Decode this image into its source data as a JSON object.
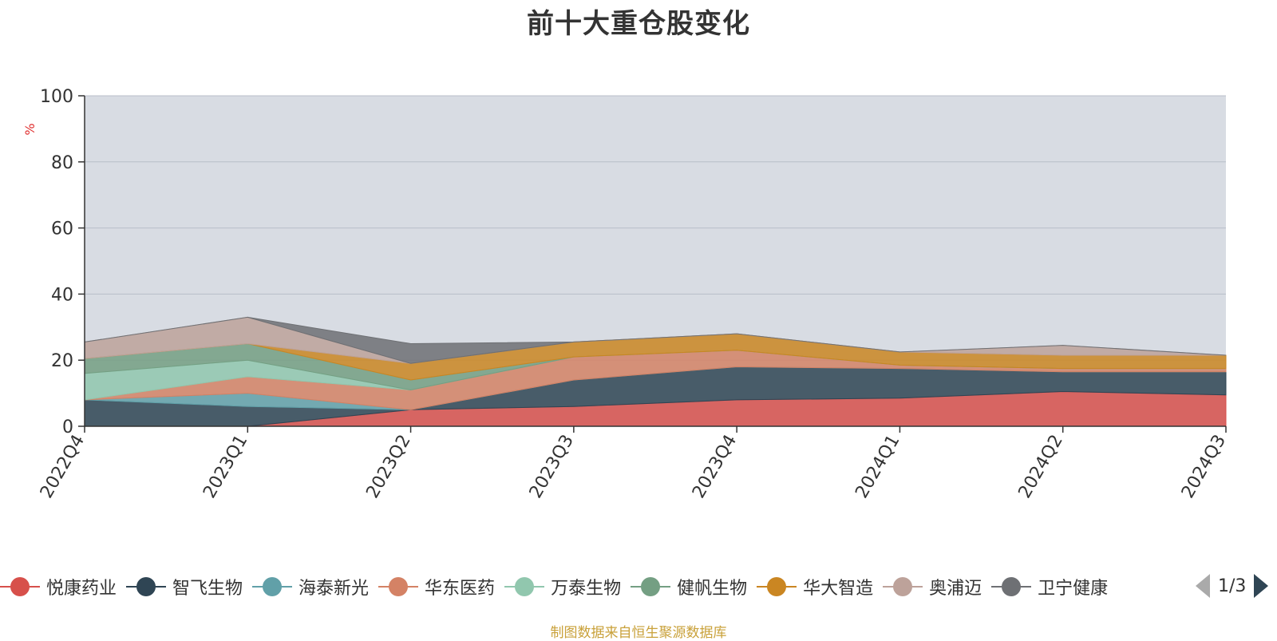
{
  "chart_data": {
    "type": "area",
    "title": "前十大重仓股变化",
    "ylabel": "%",
    "ylim": [
      0,
      100
    ],
    "yticks": [
      0,
      20,
      40,
      60,
      80,
      100
    ],
    "categories": [
      "2022Q4",
      "2023Q1",
      "2023Q2",
      "2023Q3",
      "2023Q4",
      "2024Q1",
      "2024Q2",
      "2024Q3"
    ],
    "background_color": "#d8dce3",
    "series": [
      {
        "name": "悦康药业",
        "color": "#d7504b",
        "values": [
          0,
          0,
          5,
          6,
          8,
          8.5,
          10.5,
          9.5
        ]
      },
      {
        "name": "智飞生物",
        "color": "#2f4554",
        "values": [
          8,
          6,
          0,
          8,
          10,
          9,
          6,
          7
        ]
      },
      {
        "name": "海泰新光",
        "color": "#61a0a8",
        "values": [
          0,
          4,
          0,
          0,
          0,
          0,
          0,
          0
        ]
      },
      {
        "name": "华东医药",
        "color": "#d48265",
        "values": [
          0,
          5,
          6,
          7,
          5,
          1,
          1,
          1
        ]
      },
      {
        "name": "万泰生物",
        "color": "#91c7ae",
        "values": [
          8,
          5,
          0,
          0,
          0,
          0,
          0,
          0
        ]
      },
      {
        "name": "健帆生物",
        "color": "#749f83",
        "values": [
          4.5,
          5,
          3,
          0,
          0,
          0,
          0,
          0
        ]
      },
      {
        "name": "华大智造",
        "color": "#ca8622",
        "values": [
          0,
          0,
          5,
          4.5,
          5,
          4,
          4,
          4
        ]
      },
      {
        "name": "奥浦迈",
        "color": "#bda29a",
        "values": [
          5,
          8,
          0,
          0,
          0,
          0,
          3,
          0
        ]
      },
      {
        "name": "卫宁健康",
        "color": "#6e7074",
        "values": [
          0,
          0,
          6,
          0,
          0,
          0,
          0,
          0
        ]
      }
    ]
  },
  "legend": {
    "items": [
      {
        "label": "悦康药业",
        "color": "#d7504b"
      },
      {
        "label": "智飞生物",
        "color": "#2f4554"
      },
      {
        "label": "海泰新光",
        "color": "#61a0a8"
      },
      {
        "label": "华东医药",
        "color": "#d48265"
      },
      {
        "label": "万泰生物",
        "color": "#91c7ae"
      },
      {
        "label": "健帆生物",
        "color": "#749f83"
      },
      {
        "label": "华大智造",
        "color": "#ca8622"
      },
      {
        "label": "奥浦迈",
        "color": "#bda29a"
      },
      {
        "label": "卫宁健康",
        "color": "#6e7074"
      }
    ],
    "page": "1/3"
  },
  "source": "制图数据来自恒生聚源数据库"
}
